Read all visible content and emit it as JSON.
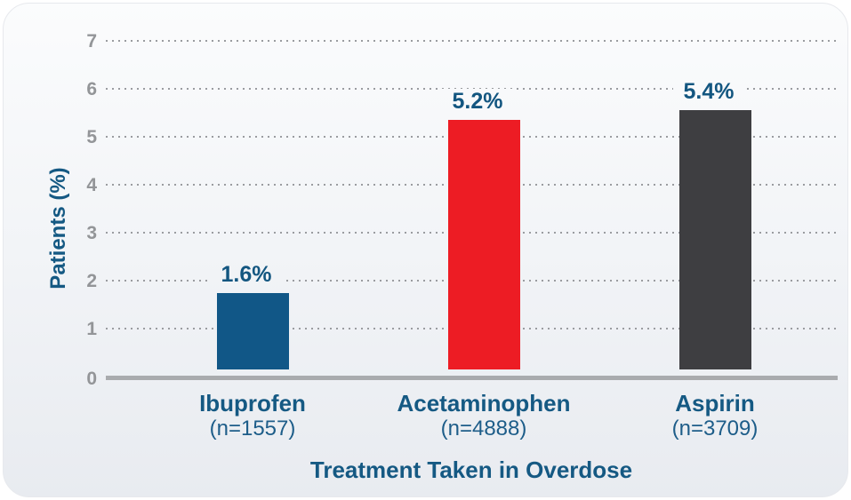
{
  "chart_data": {
    "type": "bar",
    "title": "",
    "xlabel": "Treatment Taken in Overdose",
    "ylabel": "Patients (%)",
    "ylim": [
      0,
      7
    ],
    "yticks": [
      "0",
      "1",
      "2",
      "3",
      "4",
      "5",
      "6",
      "7"
    ],
    "grid": "horizontal-dotted",
    "legend": "none",
    "categories": [
      "Ibuprofen",
      "Acetaminophen",
      "Aspirin"
    ],
    "sample_sizes": [
      "(n=1557)",
      "(n=4888)",
      "(n=3709)"
    ],
    "values": [
      1.6,
      5.2,
      5.4
    ],
    "value_labels": [
      "1.6%",
      "5.2%",
      "5.4%"
    ],
    "bar_colors": [
      "#115787",
      "#ED1C24",
      "#3E3E41"
    ]
  },
  "colors": {
    "text_blue": "#155983",
    "tick_gray": "#939598",
    "grid_dot_gray": "#9a9ca0",
    "baseline_gray": "#a9abae",
    "card_border": "#e7e9ed",
    "card_bg_top": "#fbfcfd",
    "card_bg_bottom": "#e8ebf0"
  }
}
